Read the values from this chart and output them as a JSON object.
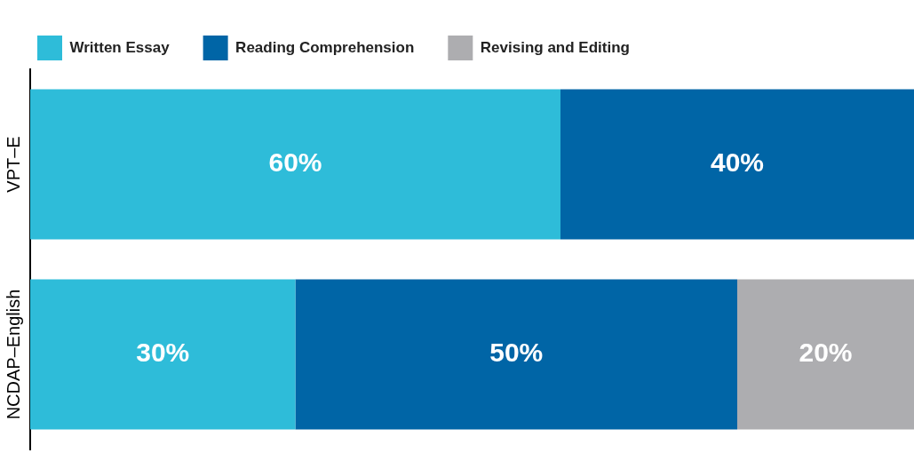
{
  "chart_data": {
    "type": "bar",
    "orientation": "horizontal",
    "stacked": true,
    "categories": [
      "VPT–E",
      "NCDAP–English"
    ],
    "series": [
      {
        "name": "Written Essay",
        "color": "#2ebcd9",
        "values": [
          60,
          30
        ],
        "value_labels": [
          "60%",
          "30%"
        ]
      },
      {
        "name": "Reading Comprehension",
        "color": "#0065a6",
        "values": [
          40,
          50
        ],
        "value_labels": [
          "40%",
          "50%"
        ]
      },
      {
        "name": "Revising and Editing",
        "color": "#adadb0",
        "values": [
          null,
          20
        ],
        "value_labels": [
          null,
          "20%"
        ]
      }
    ],
    "xlim": [
      0,
      100
    ],
    "tick_labels": "y",
    "legend": "top left"
  }
}
